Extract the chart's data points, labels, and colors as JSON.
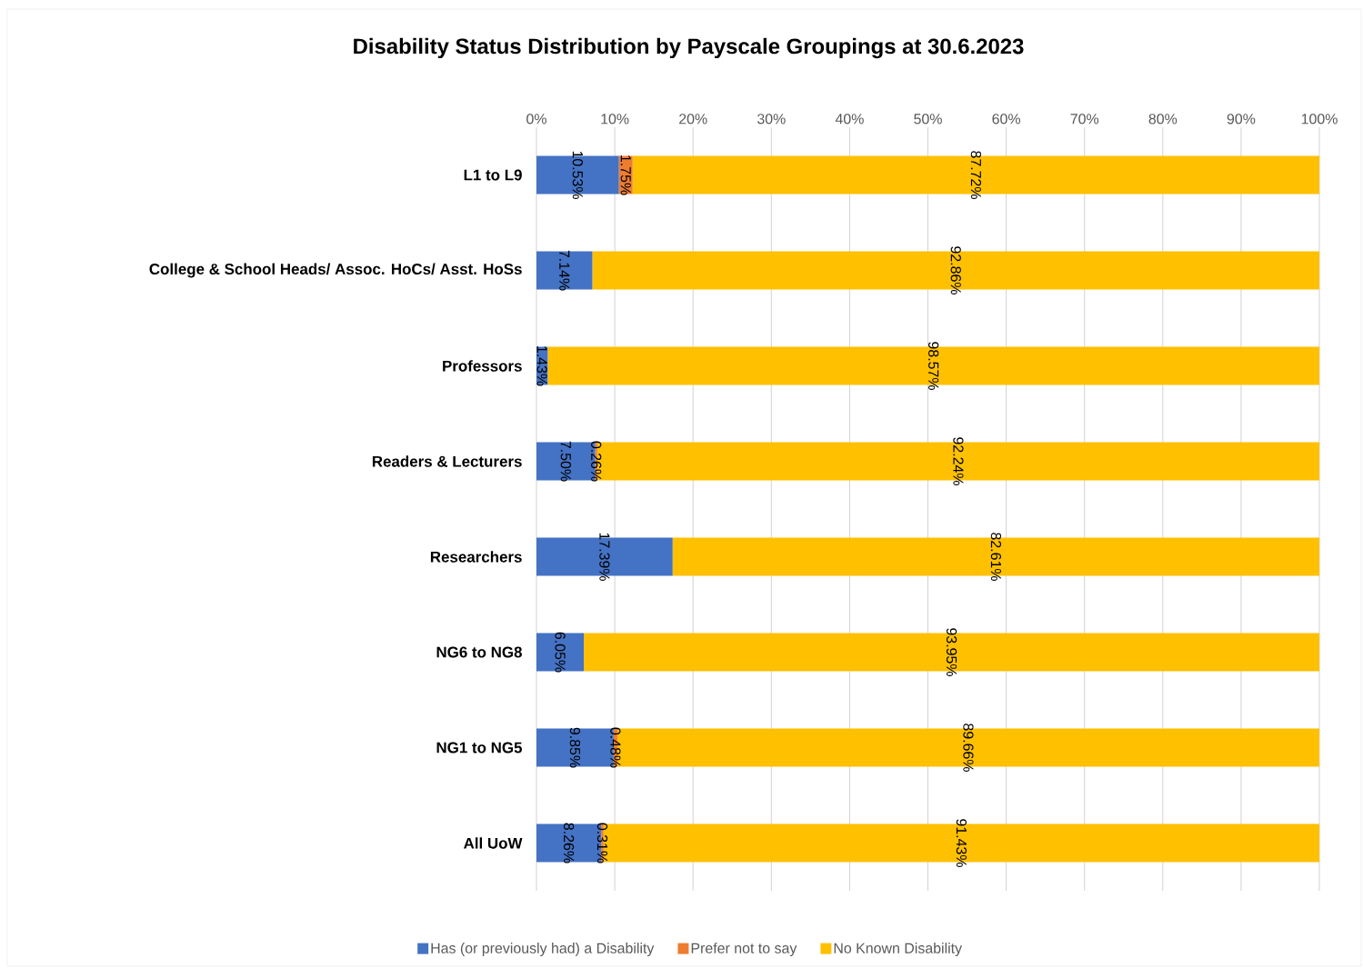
{
  "chart_data": {
    "type": "bar",
    "orientation": "horizontal",
    "stacked": true,
    "title": "Disability Status Distribution by Payscale Groupings at 30.6.2023",
    "categories": [
      "L1 to L9",
      "College & School Heads/ Assoc. HoCs/ Asst. HoSs",
      "Professors",
      "Readers & Lecturers",
      "Researchers",
      "NG6 to NG8",
      "NG1 to NG5",
      "All UoW"
    ],
    "series": [
      {
        "name": "Has (or previously had) a Disability",
        "color": "#4472c4",
        "values": [
          10.53,
          7.14,
          1.43,
          7.5,
          17.39,
          6.05,
          9.85,
          8.26
        ],
        "value_labels": [
          "10.53%",
          "7.14%",
          "1.43%",
          "7.50%",
          "17.39%",
          "6.05%",
          "9.85%",
          "8.26%"
        ]
      },
      {
        "name": "Prefer not to say",
        "color": "#ed7d31",
        "values": [
          1.75,
          0,
          0,
          0.26,
          0,
          0,
          0.48,
          0.31
        ],
        "value_labels": [
          "1.75%",
          null,
          null,
          "0.26%",
          null,
          null,
          "0.48%",
          "0.31%"
        ]
      },
      {
        "name": "No Known Disability",
        "color": "#ffc000",
        "values": [
          87.72,
          92.86,
          98.57,
          92.24,
          82.61,
          93.95,
          89.66,
          91.43
        ],
        "value_labels": [
          "87.72%",
          "92.86%",
          "98.57%",
          "92.24%",
          "82.61%",
          "93.95%",
          "89.66%",
          "91.43%"
        ]
      }
    ],
    "xlim": [
      0,
      100
    ],
    "xticks": [
      {
        "value": 0,
        "label": "0%"
      },
      {
        "value": 10,
        "label": "10%"
      },
      {
        "value": 20,
        "label": "20%"
      },
      {
        "value": 30,
        "label": "30%"
      },
      {
        "value": 40,
        "label": "40%"
      },
      {
        "value": 50,
        "label": "50%"
      },
      {
        "value": 60,
        "label": "60%"
      },
      {
        "value": 70,
        "label": "70%"
      },
      {
        "value": 80,
        "label": "80%"
      },
      {
        "value": 90,
        "label": "90%"
      },
      {
        "value": 100,
        "label": "100%"
      }
    ],
    "grid": "x",
    "legend": "bottom"
  }
}
